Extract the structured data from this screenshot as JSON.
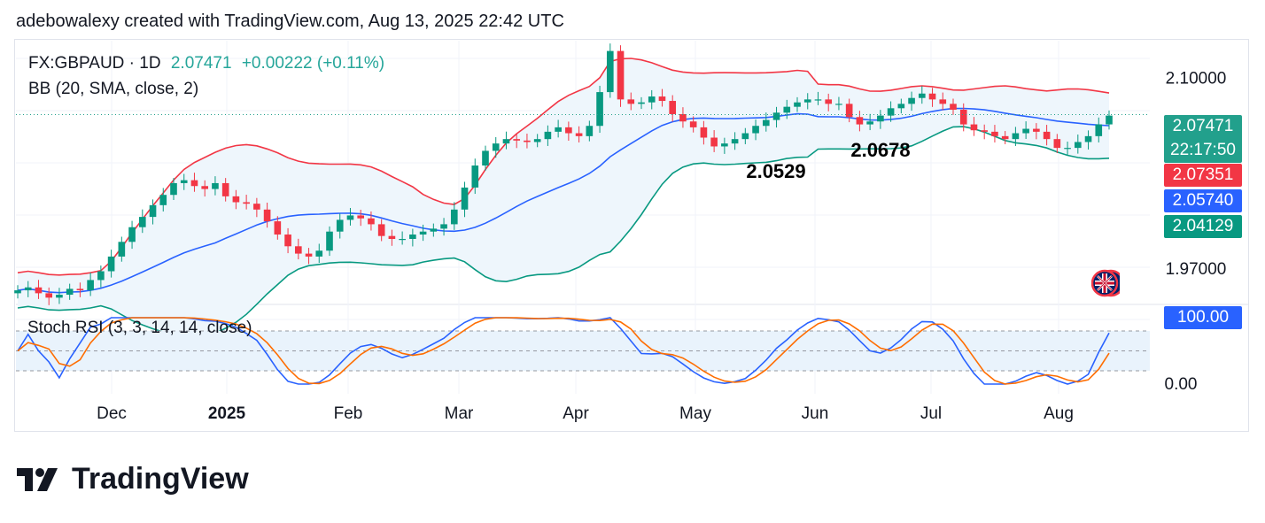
{
  "header": "adebowalexy created with TradingView.com, Aug 13, 2025 22:42 UTC",
  "legend": {
    "symbol": "FX:GBPAUD · 1D",
    "price": "2.07471",
    "change": "+0.00222 (+0.11%)",
    "bb": "BB (20, SMA, close, 2)",
    "stoch": "Stoch RSI (3, 3, 14, 14, close)"
  },
  "tags": {
    "price": "2.07471",
    "countdown": "22:17:50",
    "bb_upper": "2.07351",
    "bb_basis": "2.05740",
    "bb_lower": "2.04129",
    "stoch_k": "100.00"
  },
  "annotations": [
    "2.0529",
    "2.0678"
  ],
  "logo": "TradingView",
  "colors": {
    "up": "#089981",
    "down": "#f23645",
    "bb_upper": "#f23645",
    "bb_basis": "#2962ff",
    "bb_lower": "#089981",
    "bb_fill": "#eef6fc",
    "stoch_k": "#2962ff",
    "stoch_d": "#ff6d00",
    "stoch_band": "#e9f3fc"
  },
  "chart_data": {
    "type": "candlestick",
    "symbol": "FX:GBPAUD",
    "timeframe": "1D",
    "ylim": [
      1.946,
      2.125
    ],
    "y_ticks": [
      "2.10000",
      "1.97000"
    ],
    "y_tick_values": [
      2.1,
      1.97
    ],
    "x_ticks": [
      "Dec",
      "2025",
      "Feb",
      "Mar",
      "Apr",
      "May",
      "Jun",
      "Jul",
      "Aug"
    ],
    "close_series": [
      1.955,
      1.957,
      1.953,
      1.95,
      1.952,
      1.956,
      1.955,
      1.962,
      1.968,
      1.978,
      1.988,
      1.998,
      2.005,
      2.013,
      2.02,
      2.028,
      2.03,
      2.026,
      2.024,
      2.028,
      2.019,
      2.015,
      2.014,
      2.01,
      2.002,
      1.993,
      1.985,
      1.98,
      1.978,
      1.982,
      1.995,
      2.003,
      2.006,
      2.004,
      2.0,
      1.992,
      1.99,
      1.99,
      1.993,
      1.995,
      1.997,
      2.0,
      2.01,
      2.025,
      2.04,
      2.05,
      2.055,
      2.058,
      2.057,
      2.056,
      2.058,
      2.063,
      2.066,
      2.062,
      2.06,
      2.067,
      2.09,
      2.118,
      2.085,
      2.082,
      2.083,
      2.087,
      2.084,
      2.075,
      2.07,
      2.066,
      2.059,
      2.053,
      2.055,
      2.058,
      2.062,
      2.067,
      2.071,
      2.076,
      2.08,
      2.083,
      2.085,
      2.085,
      2.082,
      2.082,
      2.073,
      2.068,
      2.07,
      2.074,
      2.079,
      2.082,
      2.086,
      2.089,
      2.085,
      2.082,
      2.078,
      2.068,
      2.064,
      2.063,
      2.06,
      2.058,
      2.062,
      2.065,
      2.063,
      2.058,
      2.052,
      2.052,
      2.056,
      2.06,
      2.068,
      2.074
    ],
    "annotations": [
      {
        "text": "2.0529",
        "value": 2.0529
      },
      {
        "text": "2.0678",
        "value": 2.0678
      }
    ],
    "bollinger": {
      "length": 20,
      "basis": "SMA",
      "source": "close",
      "mult": 2,
      "upper": 2.07351,
      "basis_value": 2.0574,
      "lower": 2.04129
    },
    "last": {
      "price": 2.07471,
      "change": 0.00222,
      "change_pct": 0.11
    },
    "stoch_rsi": {
      "params": "3, 3, 14, 14",
      "source": "close",
      "ylim": [
        0,
        100
      ],
      "y_ticks": [
        "100.00",
        "0.00"
      ],
      "bands": [
        80,
        20
      ],
      "last_k": 100.0
    }
  }
}
